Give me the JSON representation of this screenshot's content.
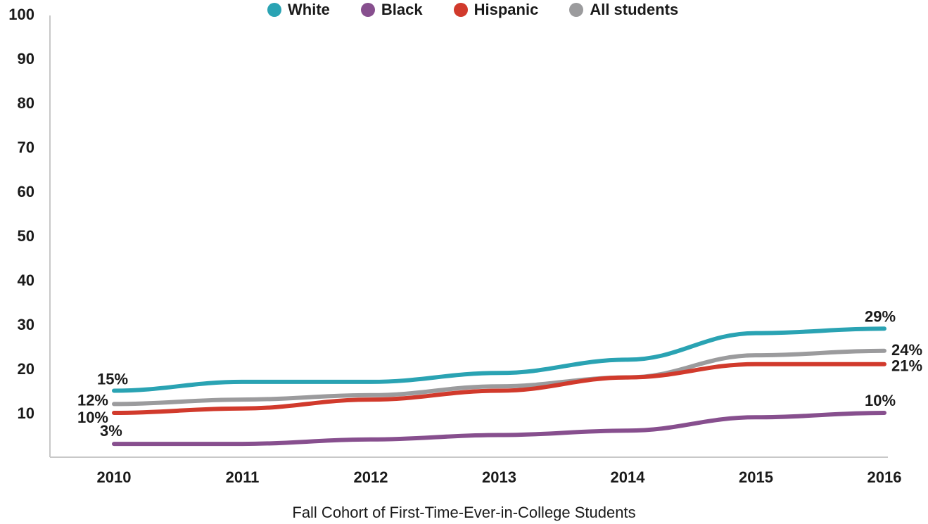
{
  "chart_data": {
    "type": "line",
    "xlabel": "Fall Cohort of First-Time-Ever-in-College Students",
    "ylabel": "",
    "ylim": [
      0,
      100
    ],
    "yticks": [
      "100",
      "90",
      "80",
      "70",
      "60",
      "50",
      "40",
      "30",
      "20",
      "10"
    ],
    "categories": [
      "2010",
      "2011",
      "2012",
      "2013",
      "2014",
      "2015",
      "2016"
    ],
    "legend_position": "top",
    "grid": false,
    "series": [
      {
        "name": "White",
        "color": "#2aa3b3",
        "values": [
          15,
          17,
          17,
          19,
          22,
          28,
          29
        ]
      },
      {
        "name": "Black",
        "color": "#874f8e",
        "values": [
          3,
          3,
          4,
          5,
          6,
          9,
          10
        ]
      },
      {
        "name": "Hispanic",
        "color": "#d13a2c",
        "values": [
          10,
          11,
          13,
          15,
          18,
          21,
          21
        ]
      },
      {
        "name": "All students",
        "color": "#9b9b9d",
        "values": [
          12,
          13,
          14,
          16,
          18,
          23,
          24
        ]
      }
    ],
    "data_labels": {
      "white_start": "15%",
      "white_end": "29%",
      "black_start": "3%",
      "black_end": "10%",
      "hispanic_start": "10%",
      "hispanic_end": "21%",
      "all_start": "12%",
      "all_end": "24%"
    }
  }
}
